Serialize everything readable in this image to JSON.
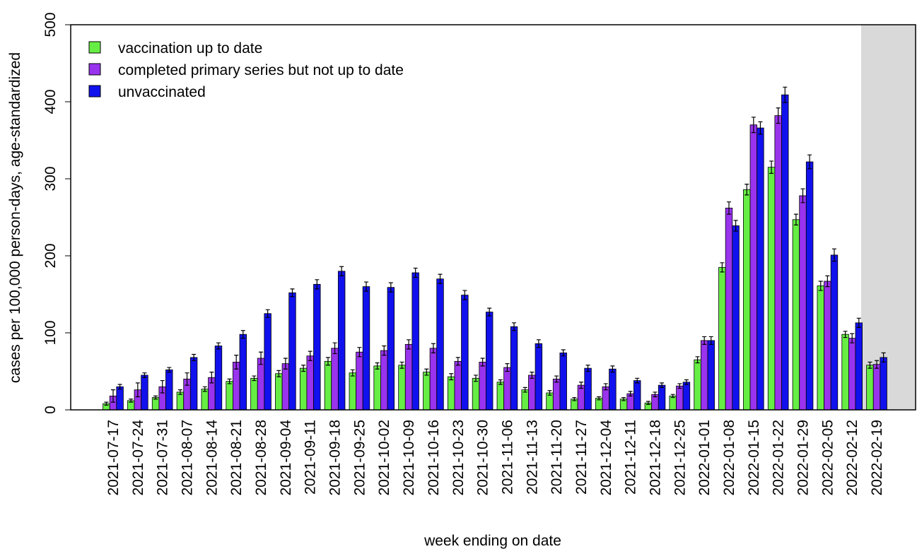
{
  "chart_data": {
    "type": "bar",
    "x_label": "week ending on date",
    "y_label": "cases per 100,000 person-days, age-standardized",
    "categories": [
      "2021-07-17",
      "2021-07-24",
      "2021-07-31",
      "2021-08-07",
      "2021-08-14",
      "2021-08-21",
      "2021-08-28",
      "2021-09-04",
      "2021-09-11",
      "2021-09-18",
      "2021-09-25",
      "2021-10-02",
      "2021-10-09",
      "2021-10-16",
      "2021-10-23",
      "2021-10-30",
      "2021-11-06",
      "2021-11-13",
      "2021-11-20",
      "2021-11-27",
      "2021-12-04",
      "2021-12-11",
      "2021-12-18",
      "2021-12-25",
      "2022-01-01",
      "2022-01-08",
      "2022-01-15",
      "2022-01-22",
      "2022-01-29",
      "2022-02-05",
      "2022-02-12",
      "2022-02-19"
    ],
    "series": [
      {
        "name": "vaccination up to date",
        "color": "#66ee44",
        "values": [
          8,
          12,
          16,
          23,
          27,
          37,
          41,
          47,
          54,
          63,
          48,
          57,
          58,
          49,
          43,
          41,
          36,
          26,
          22,
          14,
          15,
          14,
          9,
          18,
          65,
          185,
          286,
          315,
          247,
          161,
          98,
          58
        ],
        "errors": [
          2,
          2,
          2,
          3,
          3,
          3,
          3,
          4,
          4,
          5,
          4,
          4,
          4,
          4,
          4,
          4,
          3,
          3,
          3,
          2,
          2,
          2,
          2,
          2,
          4,
          6,
          7,
          8,
          7,
          6,
          4,
          4
        ]
      },
      {
        "name": "completed primary series but not up to date",
        "color": "#9933ee",
        "values": [
          18,
          26,
          30,
          40,
          42,
          62,
          67,
          60,
          70,
          80,
          75,
          77,
          85,
          80,
          63,
          62,
          55,
          45,
          40,
          32,
          30,
          21,
          20,
          31,
          90,
          262,
          370,
          382,
          278,
          167,
          93,
          59
        ],
        "errors": [
          8,
          9,
          8,
          8,
          7,
          9,
          8,
          7,
          6,
          7,
          6,
          6,
          6,
          6,
          5,
          5,
          5,
          4,
          4,
          4,
          4,
          3,
          3,
          3,
          5,
          8,
          10,
          10,
          9,
          7,
          6,
          5
        ]
      },
      {
        "name": "unvaccinated",
        "color": "#1111ee",
        "values": [
          30,
          45,
          52,
          68,
          83,
          98,
          125,
          152,
          163,
          180,
          160,
          159,
          178,
          170,
          149,
          127,
          108,
          86,
          74,
          54,
          53,
          38,
          32,
          36,
          90,
          239,
          366,
          409,
          322,
          201,
          113,
          68
        ],
        "errors": [
          3,
          3,
          3,
          4,
          4,
          5,
          5,
          5,
          6,
          6,
          6,
          6,
          6,
          6,
          6,
          5,
          5,
          5,
          4,
          4,
          4,
          3,
          3,
          3,
          5,
          7,
          8,
          10,
          9,
          8,
          6,
          6
        ]
      }
    ],
    "ylim": [
      0,
      500
    ],
    "yticks": [
      0,
      100,
      200,
      300,
      400,
      500
    ],
    "legend": "top-left"
  }
}
